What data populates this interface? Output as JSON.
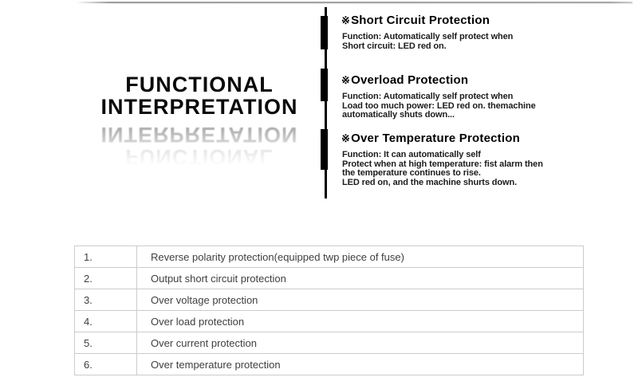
{
  "title": {
    "line1": "FUNCTIONAL",
    "line2": "INTERPRETATION"
  },
  "sections": [
    {
      "marker": "※",
      "title": "Short Circuit Protection",
      "body": "Function: Automatically self protect when\nShort circuit: LED red on."
    },
    {
      "marker": "※",
      "title": "Overload Protection",
      "body": "Function: Automatically self protect when\nLoad too much power: LED red on. themachine\nautomatically shuts down..."
    },
    {
      "marker": "※",
      "title": "Over Temperature Protection",
      "body": "Function: It can automatically self\nProtect when at high temperature: fist alarm then\nthe temperature continues to rise.\nLED red on, and the machine shurts down."
    }
  ],
  "table": {
    "rows": [
      {
        "num": "1.",
        "text": "Reverse polarity protection(equipped twp piece of fuse)"
      },
      {
        "num": "2.",
        "text": "Output short circuit protection"
      },
      {
        "num": "3.",
        "text": "Over voltage protection"
      },
      {
        "num": "4.",
        "text": "Over load protection"
      },
      {
        "num": "5.",
        "text": "Over current protection"
      },
      {
        "num": "6.",
        "text": "Over temperature protection"
      }
    ]
  },
  "style": {
    "accent_color": "#000000",
    "table_border_color": "#cccccc",
    "table_text_color": "#3f3f3f",
    "rule_color": "#a8a8a8"
  }
}
